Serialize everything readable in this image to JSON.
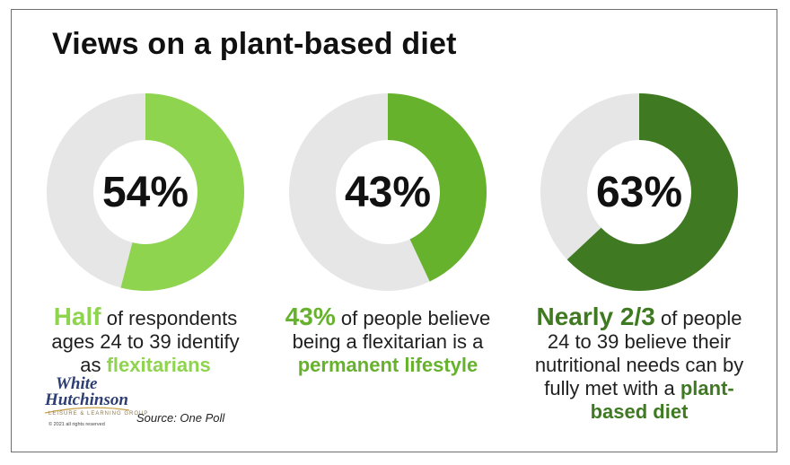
{
  "title": "Views on a plant-based diet",
  "colors": {
    "track": "#e6e6e6",
    "green1": "#8fd44f",
    "green2": "#66b22d",
    "green3": "#3f7a22"
  },
  "chart_data": [
    {
      "type": "pie",
      "values": [
        54,
        46
      ],
      "center_label": "54%",
      "colors": [
        "#8fd44f",
        "#e6e6e6"
      ]
    },
    {
      "type": "pie",
      "values": [
        43,
        57
      ],
      "center_label": "43%",
      "colors": [
        "#66b22d",
        "#e6e6e6"
      ]
    },
    {
      "type": "pie",
      "values": [
        63,
        37
      ],
      "center_label": "63%",
      "colors": [
        "#3f7a22",
        "#e6e6e6"
      ]
    }
  ],
  "captions": [
    {
      "lead": "Half",
      "line1_rest": " of respondents",
      "line2": "ages 24 to 39 identify",
      "line3_pre": "as ",
      "line3_hl": "flexitarians"
    },
    {
      "lead": "43%",
      "line1_rest": " of people believe",
      "line2": "being a flexitarian is a",
      "line3_hl": "permanent lifestyle"
    },
    {
      "lead": "Nearly 2/3",
      "line1_rest": " of people",
      "line2": "24 to 39 believe their",
      "line3": "nutritional needs can by",
      "line4_pre": "fully met with a ",
      "line4_hl": "plant-",
      "line5_hl": "based diet"
    }
  ],
  "logo": {
    "line1": "White",
    "line2": "Hutchinson",
    "tagline": "LEISURE & LEARNING GROUP",
    "copyright": "© 2021 all rights reserved"
  },
  "source": "Source: One Poll"
}
